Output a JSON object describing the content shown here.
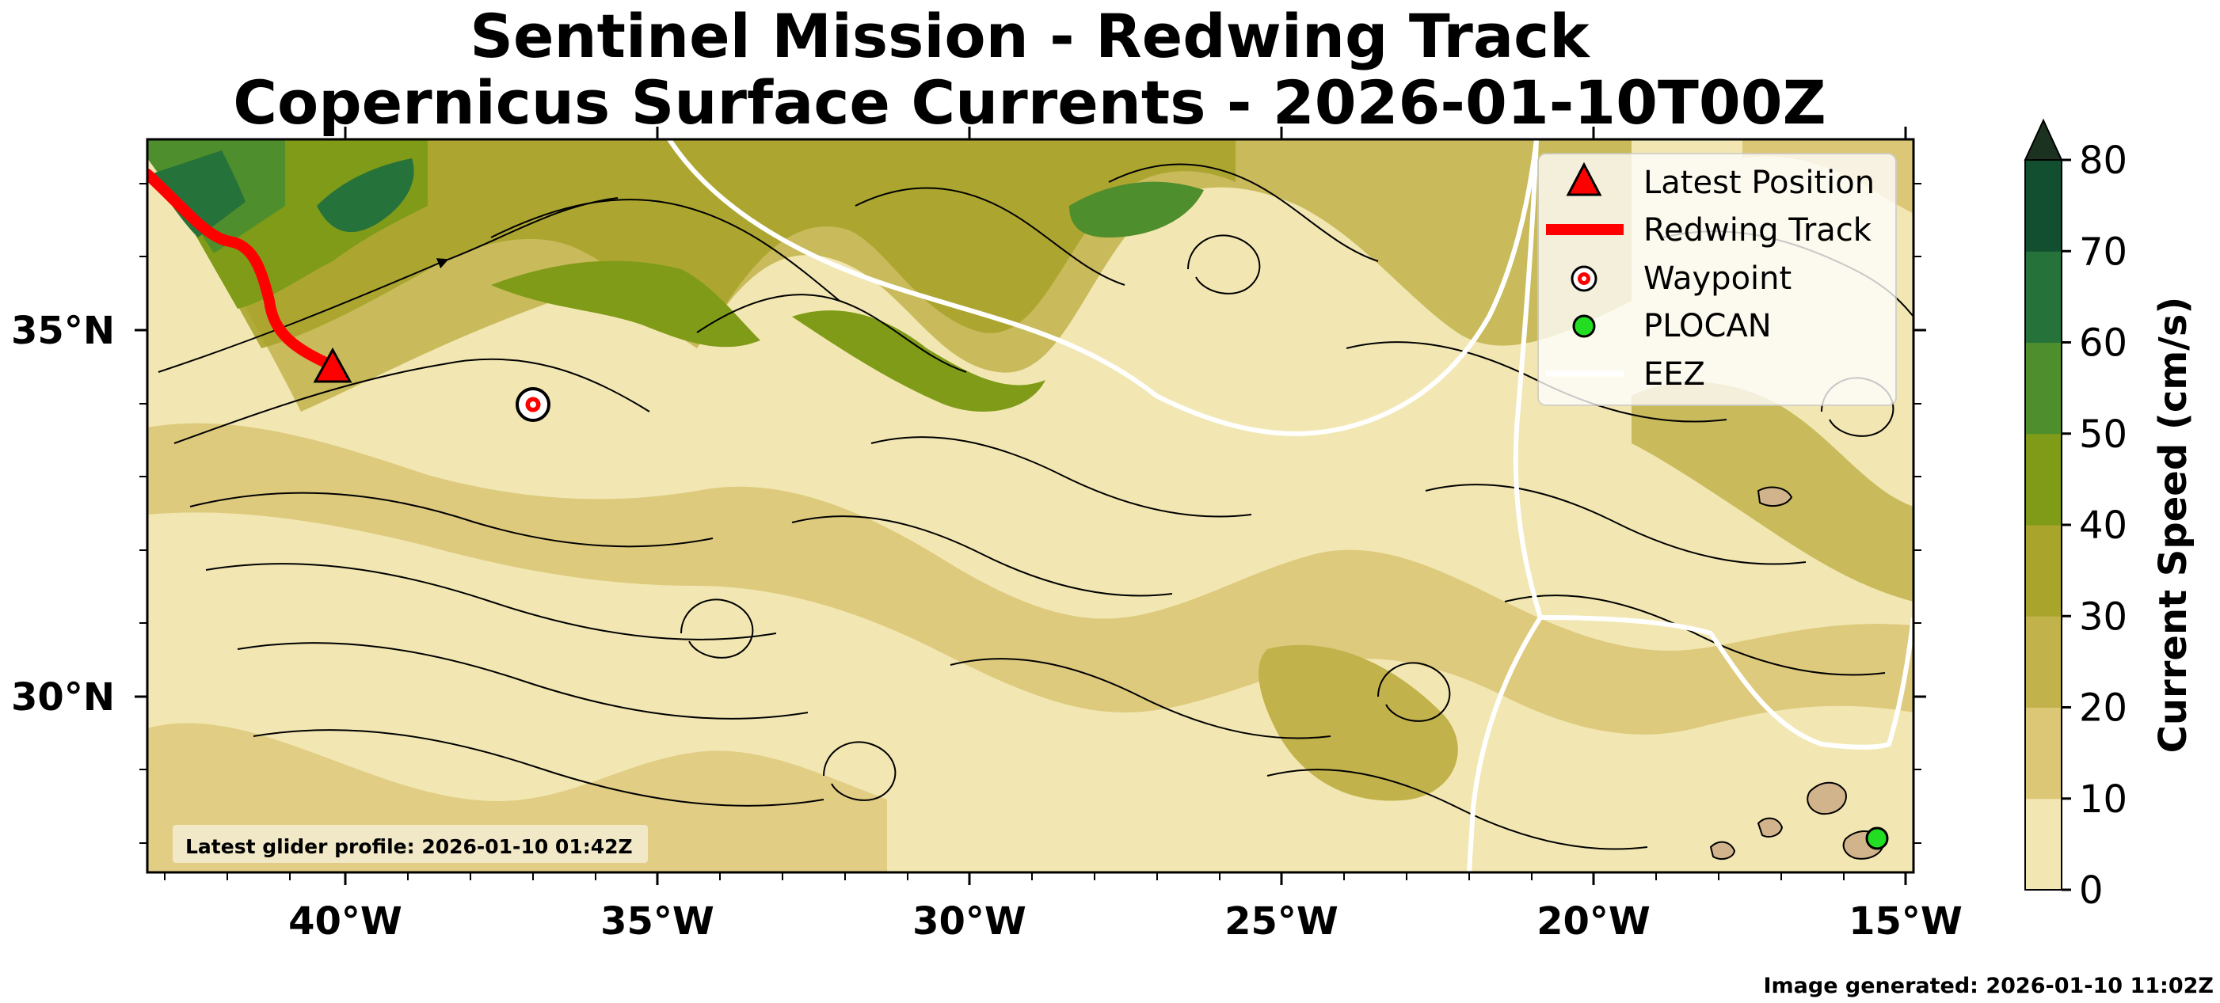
{
  "title": {
    "line1": "Sentinel Mission - Redwing Track",
    "line2": "Copernicus Surface Currents - 2026-01-10T00Z"
  },
  "map": {
    "lon_labels": [
      "40°W",
      "35°W",
      "30°W",
      "25°W",
      "20°W",
      "15°W"
    ],
    "lat_labels": [
      "35°N",
      "30°N"
    ],
    "extent": {
      "lon": [
        -43.3,
        -14.9
      ],
      "lat": [
        27.6,
        37.6
      ]
    },
    "inset_label": "Latest glider profile: 2026-01-10 01:42Z",
    "latest_position": {
      "lon": -40.3,
      "lat": 34.5
    },
    "waypoint": {
      "lon": -36.9,
      "lat": 34.0
    },
    "plocan": {
      "lon": -15.4,
      "lat": 27.9
    }
  },
  "legend": {
    "items": [
      {
        "symbol": "triangle",
        "label": "Latest Position"
      },
      {
        "symbol": "line",
        "label": "Redwing Track"
      },
      {
        "symbol": "target",
        "label": "Waypoint"
      },
      {
        "symbol": "dot",
        "label": "PLOCAN"
      },
      {
        "symbol": "white-line",
        "label": "EEZ"
      }
    ]
  },
  "colorbar": {
    "label": "Current Speed (cm/s)",
    "ticks": [
      "0",
      "10",
      "20",
      "30",
      "40",
      "50",
      "60",
      "70",
      "80"
    ],
    "colors": [
      "#f2e7b2",
      "#dcc777",
      "#c2b24b",
      "#a8a42c",
      "#7f9b18",
      "#4f8e2c",
      "#25723b",
      "#124f30",
      "#1b3221"
    ]
  },
  "footer": "Image generated: 2026-01-10 11:02Z"
}
